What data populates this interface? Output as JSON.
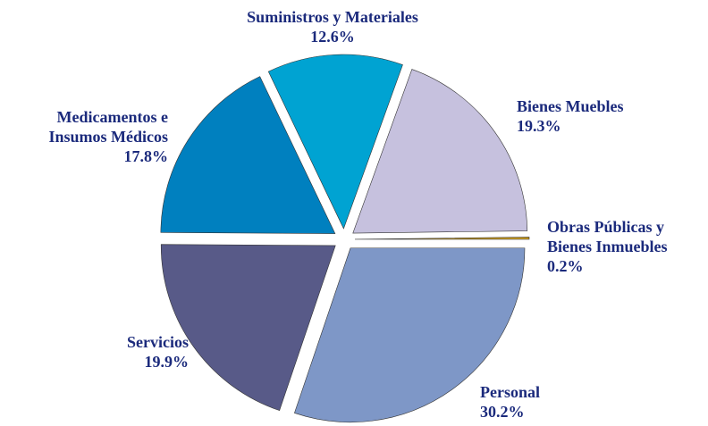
{
  "chart_data": {
    "type": "pie",
    "categories": [
      "Obras Públicas y\nBienes Inmuebles",
      "Bienes Muebles",
      "Suministros y Materiales",
      "Medicamentos e\nInsumos Médicos",
      "Servicios",
      "Personal"
    ],
    "values": [
      0.2,
      19.3,
      12.6,
      17.8,
      19.9,
      30.2
    ],
    "value_labels": [
      "0.2%",
      "19.3%",
      "12.6%",
      "17.8%",
      "19.9%",
      "30.2%"
    ],
    "colors": [
      "#d4a017",
      "#c6c1de",
      "#00a3d2",
      "#0080bf",
      "#585a88",
      "#7e97c7"
    ],
    "start_angle": 0,
    "direction": "counterclockwise",
    "exploded": true
  }
}
